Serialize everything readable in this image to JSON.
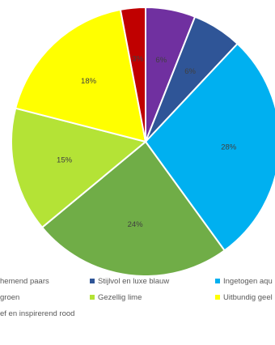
{
  "chart_data": {
    "type": "pie",
    "title": "",
    "slices": [
      {
        "label": "Innemend paars",
        "value": 6,
        "value_label": "6%",
        "color": "#7030A0"
      },
      {
        "label": "Stijlvol en luxe blauw",
        "value": 6,
        "value_label": "6%",
        "color": "#2F5597"
      },
      {
        "label": "Ingetogen aqua",
        "value": 28,
        "value_label": "28%",
        "color": "#00B0F0"
      },
      {
        "label": "groen",
        "value": 24,
        "value_label": "24%",
        "color": "#70AD47"
      },
      {
        "label": "Gezellig lime",
        "value": 15,
        "value_label": "15%",
        "color": "#B4E336"
      },
      {
        "label": "Uitbundig geel",
        "value": 18,
        "value_label": "18%",
        "color": "#FFFF00"
      },
      {
        "label": "Lief en inspirerend rood",
        "value": 3,
        "value_label": "3%",
        "color": "#C00000"
      }
    ],
    "legend": {
      "position": "bottom",
      "visible_labels": [
        "hemend paars",
        "Stijlvol en luxe blauw",
        "Ingetogen aqu",
        "groen",
        "Gezellig lime",
        "Uitbundig geel",
        "ef en inspirerend rood"
      ]
    }
  }
}
